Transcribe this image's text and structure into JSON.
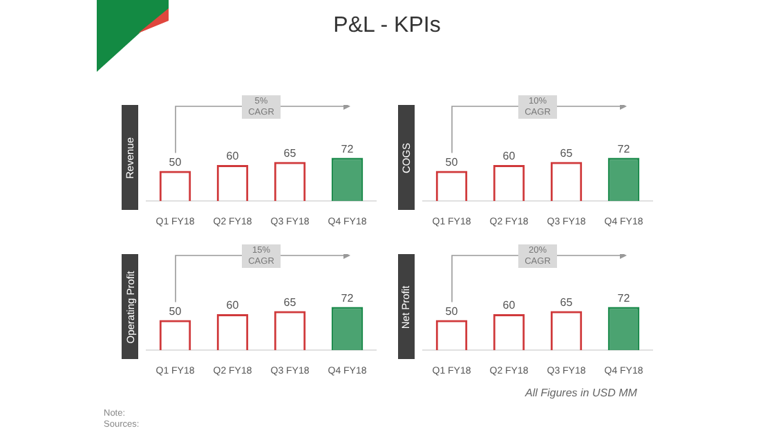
{
  "chart_data": [
    {
      "type": "other",
      "title": "P&L - KPIs",
      "annotations": [
        "All Figures in USD MM",
        "Note:",
        "Sources:"
      ]
    },
    {
      "type": "bar",
      "ylabel": "Revenue",
      "categories": [
        "Q1 FY18",
        "Q2 FY18",
        "Q3 FY18",
        "Q4 FY18"
      ],
      "values": [
        50,
        60,
        65,
        72
      ],
      "colors": [
        "#d0393b",
        "#d0393b",
        "#d0393b",
        "#1e8c4e"
      ],
      "data_labels": true,
      "annotations": [
        "5% CAGR"
      ]
    },
    {
      "type": "bar",
      "ylabel": "COGS",
      "categories": [
        "Q1 FY18",
        "Q2 FY18",
        "Q3 FY18",
        "Q4 FY18"
      ],
      "values": [
        50,
        60,
        65,
        72
      ],
      "colors": [
        "#d0393b",
        "#d0393b",
        "#d0393b",
        "#1e8c4e"
      ],
      "data_labels": true,
      "annotations": [
        "10% CAGR"
      ]
    },
    {
      "type": "bar",
      "ylabel": "Operating Profit",
      "categories": [
        "Q1 FY18",
        "Q2 FY18",
        "Q3 FY18",
        "Q4 FY18"
      ],
      "values": [
        50,
        60,
        65,
        72
      ],
      "colors": [
        "#d0393b",
        "#d0393b",
        "#d0393b",
        "#1e8c4e"
      ],
      "data_labels": true,
      "annotations": [
        "15% CAGR"
      ]
    },
    {
      "type": "bar",
      "ylabel": "Net Profit",
      "categories": [
        "Q1 FY18",
        "Q2 FY18",
        "Q3 FY18",
        "Q4 FY18"
      ],
      "values": [
        50,
        60,
        65,
        72
      ],
      "colors": [
        "#d0393b",
        "#d0393b",
        "#d0393b",
        "#1e8c4e"
      ],
      "data_labels": true,
      "annotations": [
        "20% CAGR"
      ]
    }
  ]
}
